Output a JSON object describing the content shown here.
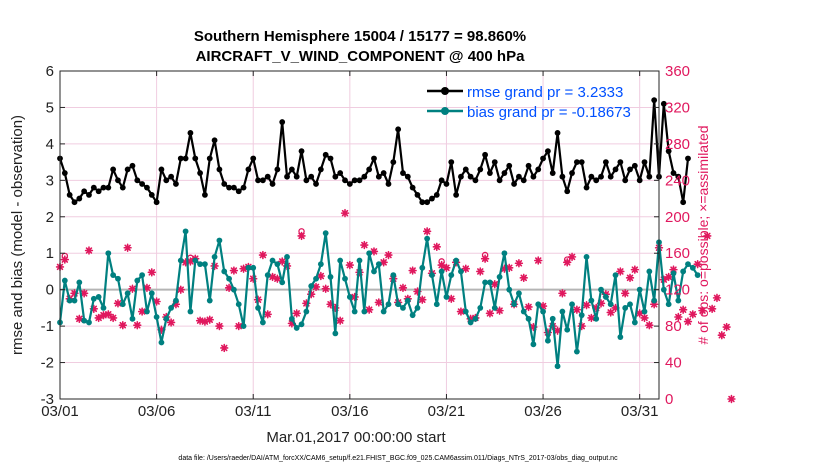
{
  "chart_data": {
    "type": "line",
    "title": "Southern Hemisphere 15004 / 15177 = 98.860%",
    "subtitle": "AIRCRAFT_V_WIND_COMPONENT @ 400 hPa",
    "xlabel": "Mar.01,2017 00:00:00 start",
    "ylabel_left": "rmse and bias (model - observation)",
    "ylabel_right": "# of obs: o=possible; ×=assimilated",
    "footer": "data file: /Users/raeder/DAI/ATM_forcXX/CAM6_setup/f.e21.FHIST_BGC.f09_025.CAM6assim.011/Diags_NTrS_2017-03/obs_diag_output.nc",
    "xlim": [
      0,
      31
    ],
    "ylim_left": [
      -3,
      6
    ],
    "ylim_right": [
      0,
      360
    ],
    "xticks": [
      0,
      5,
      10,
      15,
      20,
      25,
      30
    ],
    "xtick_labels": [
      "03/01",
      "03/06",
      "03/11",
      "03/16",
      "03/21",
      "03/26",
      "03/31"
    ],
    "yticks_left": [
      "-3",
      "-2",
      "-1",
      "0",
      "1",
      "2",
      "3",
      "4",
      "5",
      "6"
    ],
    "yticks_right": [
      "0",
      "40",
      "80",
      "120",
      "160",
      "200",
      "240",
      "280",
      "320",
      "360"
    ],
    "legend_location": "top-right",
    "colors": {
      "rmse": "#000000",
      "bias": "#008080",
      "obs": "#e0185e",
      "zero_line": "#b4b4b4",
      "grid": "#f0cde0",
      "text_blue": "#0050ff"
    },
    "series": [
      {
        "name": "rmse grand pr = 3.2333",
        "dt": 0.25,
        "values": [
          3.6,
          3.2,
          2.6,
          2.4,
          2.5,
          2.7,
          2.6,
          2.8,
          2.7,
          2.8,
          2.8,
          3.3,
          3.0,
          2.8,
          3.3,
          3.4,
          3.0,
          2.9,
          2.8,
          2.6,
          2.4,
          3.3,
          3.0,
          3.1,
          2.9,
          3.6,
          3.6,
          4.3,
          3.6,
          3.2,
          2.6,
          3.6,
          4.1,
          3.3,
          2.9,
          2.8,
          2.8,
          2.7,
          2.8,
          3.3,
          3.6,
          3.0,
          3.0,
          3.1,
          2.9,
          3.3,
          4.6,
          3.1,
          3.3,
          3.1,
          3.8,
          3.0,
          3.1,
          2.9,
          3.3,
          3.7,
          3.6,
          3.1,
          3.2,
          3.0,
          2.9,
          3.0,
          3.0,
          3.1,
          3.3,
          3.6,
          3.1,
          3.2,
          2.9,
          3.5,
          4.4,
          3.2,
          3.1,
          2.8,
          2.6,
          2.4,
          2.4,
          2.5,
          2.6,
          3.0,
          2.9,
          3.5,
          2.6,
          3.1,
          3.3,
          3.1,
          3.0,
          3.3,
          3.7,
          3.2,
          3.5,
          3.0,
          3.2,
          3.4,
          2.9,
          3.1,
          3.0,
          3.4,
          3.1,
          3.3,
          3.6,
          3.8,
          3.2,
          4.3,
          3.1,
          2.7,
          3.2,
          3.5,
          3.5,
          2.8,
          3.1,
          3.0,
          3.1,
          3.5,
          3.1,
          3.3,
          3.5,
          3.0,
          3.3,
          3.4,
          3.0,
          3.5,
          3.1,
          5.2,
          3.1,
          5.1,
          3.8,
          3.2,
          3.1,
          2.4,
          3.6
        ]
      },
      {
        "name": "bias grand pr = -0.18673",
        "dt": 0.25,
        "values": [
          -0.9,
          0.25,
          -0.3,
          -0.3,
          0.2,
          -0.85,
          -0.9,
          -0.25,
          -0.2,
          -0.5,
          1.0,
          0.4,
          0.3,
          -0.4,
          -0.1,
          -0.8,
          0.25,
          0.4,
          -0.6,
          -0.1,
          -0.75,
          -1.45,
          -0.8,
          -0.5,
          -0.3,
          0.8,
          1.6,
          -0.6,
          0.8,
          0.7,
          0.7,
          -0.3,
          0.9,
          1.35,
          0.5,
          0.3,
          0.0,
          -0.4,
          -1.0,
          0.6,
          0.6,
          -0.5,
          -0.9,
          0.4,
          0.8,
          0.7,
          0.2,
          0.9,
          -0.8,
          -1.05,
          -0.95,
          -0.6,
          0.1,
          0.3,
          0.7,
          1.55,
          0.35,
          -1.2,
          0.8,
          0.3,
          -0.2,
          -0.6,
          0.8,
          -0.6,
          1.0,
          0.5,
          0.7,
          -0.6,
          -0.4,
          0.4,
          -0.4,
          -0.5,
          -0.3,
          -0.7,
          -0.5,
          0.6,
          1.4,
          0.4,
          -0.4,
          0.5,
          -0.2,
          0.4,
          0.8,
          0.5,
          -0.6,
          -0.9,
          -0.8,
          -0.5,
          0.2,
          0.2,
          -0.5,
          0.35,
          1.0,
          0.0,
          -0.4,
          -0.1,
          -0.6,
          -0.8,
          -1.5,
          -0.4,
          -0.6,
          -1.4,
          -0.8,
          -2.1,
          -0.6,
          -1.1,
          -0.4,
          -1.7,
          -0.7,
          0.9,
          -0.3,
          -0.8,
          0.0,
          -0.2,
          -0.4,
          0.4,
          -1.3,
          -0.5,
          -0.4,
          -0.9,
          0.0,
          -0.6,
          0.5,
          -0.3,
          1.3,
          0.0,
          -0.4,
          0.45,
          -0.3,
          0.5,
          0.7,
          0.6,
          0.4
        ]
      }
    ],
    "obs_assimilated": {
      "dt": 0.25,
      "values": [
        145,
        153,
        110,
        116,
        88,
        116,
        163,
        99,
        89,
        92,
        93,
        89,
        105,
        81,
        166,
        121,
        81,
        96,
        122,
        139,
        107,
        76,
        90,
        84,
        104,
        120,
        150,
        151,
        154,
        86,
        85,
        87,
        146,
        80,
        56,
        122,
        141,
        80,
        143,
        145,
        132,
        109,
        158,
        93,
        134,
        132,
        151,
        146,
        83,
        94,
        179,
        105,
        115,
        123,
        135,
        121,
        104,
        100,
        86,
        204,
        147,
        112,
        139,
        169,
        98,
        162,
        106,
        150,
        158,
        132,
        106,
        122,
        110,
        141,
        118,
        109,
        184,
        138,
        167,
        147,
        144,
        110,
        150,
        96,
        143,
        88,
        89,
        140,
        154,
        94,
        126,
        97,
        143,
        144,
        104,
        149,
        133,
        101,
        79,
        152,
        102,
        73,
        80,
        75,
        116,
        150,
        156,
        98,
        80,
        103,
        89,
        100,
        105,
        115,
        95,
        100,
        140,
        116,
        133,
        142,
        94,
        89,
        81,
        104,
        166,
        131,
        134,
        142,
        90,
        98,
        85,
        93,
        148,
        97,
        179,
        99,
        111,
        70,
        79,
        0
      ]
    },
    "obs_possible": {
      "dt": 0.25,
      "values": [
        145,
        157,
        110,
        116,
        88,
        116,
        163,
        99,
        89,
        92,
        93,
        89,
        105,
        81,
        166,
        121,
        81,
        96,
        122,
        139,
        107,
        76,
        90,
        84,
        104,
        120,
        150,
        155,
        154,
        86,
        85,
        87,
        146,
        80,
        56,
        122,
        141,
        80,
        143,
        145,
        132,
        109,
        158,
        93,
        134,
        132,
        151,
        146,
        83,
        94,
        184,
        105,
        115,
        123,
        135,
        121,
        104,
        100,
        86,
        204,
        147,
        112,
        139,
        169,
        98,
        162,
        106,
        150,
        158,
        132,
        106,
        122,
        110,
        141,
        118,
        109,
        184,
        138,
        167,
        151,
        144,
        110,
        150,
        96,
        143,
        88,
        89,
        140,
        158,
        94,
        126,
        97,
        143,
        144,
        104,
        149,
        133,
        101,
        79,
        152,
        102,
        73,
        80,
        75,
        116,
        153,
        156,
        98,
        80,
        103,
        89,
        100,
        105,
        115,
        95,
        100,
        140,
        116,
        133,
        142,
        94,
        89,
        81,
        104,
        166,
        131,
        134,
        142,
        90,
        98,
        85,
        93,
        148,
        97,
        179,
        99,
        111,
        70,
        79,
        0
      ]
    }
  }
}
